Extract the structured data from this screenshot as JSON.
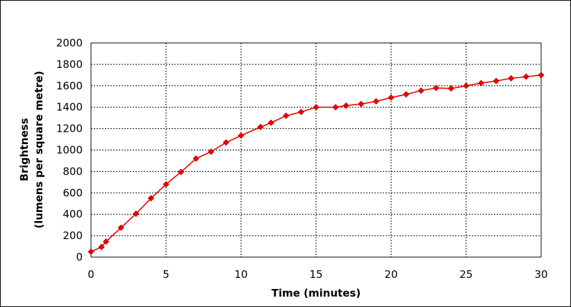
{
  "chart_data": {
    "type": "line",
    "title": "",
    "xlabel": "Time (minutes)",
    "ylabel_lines": [
      "Brightness",
      "(lumens per square metre)"
    ],
    "xlim": [
      0,
      30
    ],
    "ylim": [
      0,
      2000
    ],
    "x_ticks": [
      "0",
      "5",
      "10",
      "15",
      "20",
      "25",
      "30"
    ],
    "y_ticks": [
      "0",
      "200",
      "400",
      "600",
      "800",
      "1000",
      "1200",
      "1400",
      "1600",
      "1800",
      "2000"
    ],
    "grid": true,
    "legend": "none",
    "series_color": "#ee0000",
    "series": [
      {
        "x": [
          0,
          0.7,
          1,
          2,
          3,
          4,
          5,
          6,
          7,
          8,
          9,
          10,
          11.3,
          12,
          13,
          14,
          15,
          16.3,
          17,
          18,
          19,
          20,
          21,
          22,
          23,
          24,
          25,
          26,
          27,
          28,
          29,
          30
        ],
        "y": [
          50,
          95,
          145,
          275,
          405,
          550,
          680,
          795,
          920,
          985,
          1070,
          1135,
          1215,
          1255,
          1320,
          1355,
          1400,
          1400,
          1415,
          1430,
          1455,
          1490,
          1520,
          1555,
          1580,
          1575,
          1600,
          1625,
          1645,
          1670,
          1685,
          1700
        ]
      }
    ]
  }
}
